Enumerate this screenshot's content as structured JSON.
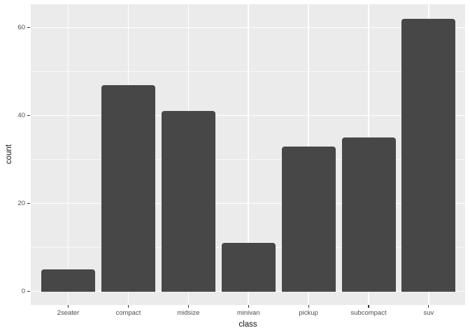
{
  "chart_data": {
    "type": "bar",
    "title": "",
    "xlabel": "class",
    "ylabel": "count",
    "categories": [
      "2seater",
      "compact",
      "midsize",
      "minivan",
      "pickup",
      "subcompact",
      "suv"
    ],
    "values": [
      5,
      47,
      41,
      11,
      33,
      35,
      62
    ],
    "ylim": [
      -3,
      65
    ],
    "yticks": [
      0,
      20,
      40,
      60
    ],
    "ytick_labels": [
      "0",
      "20",
      "40",
      "60"
    ],
    "yminor": [
      10,
      30,
      50
    ],
    "grid": "on",
    "legend": "none",
    "theme": "ggplot-gray",
    "colors": {
      "bar_fill": "#474747",
      "panel_bg": "#EBEBEB",
      "grid_major": "#FFFFFF",
      "grid_minor": "#FFFFFF",
      "tick_label": "#4D4D4D",
      "axis_title": "#111111",
      "tick_mark": "#333333",
      "figure_bg": "#FFFFFF"
    }
  }
}
